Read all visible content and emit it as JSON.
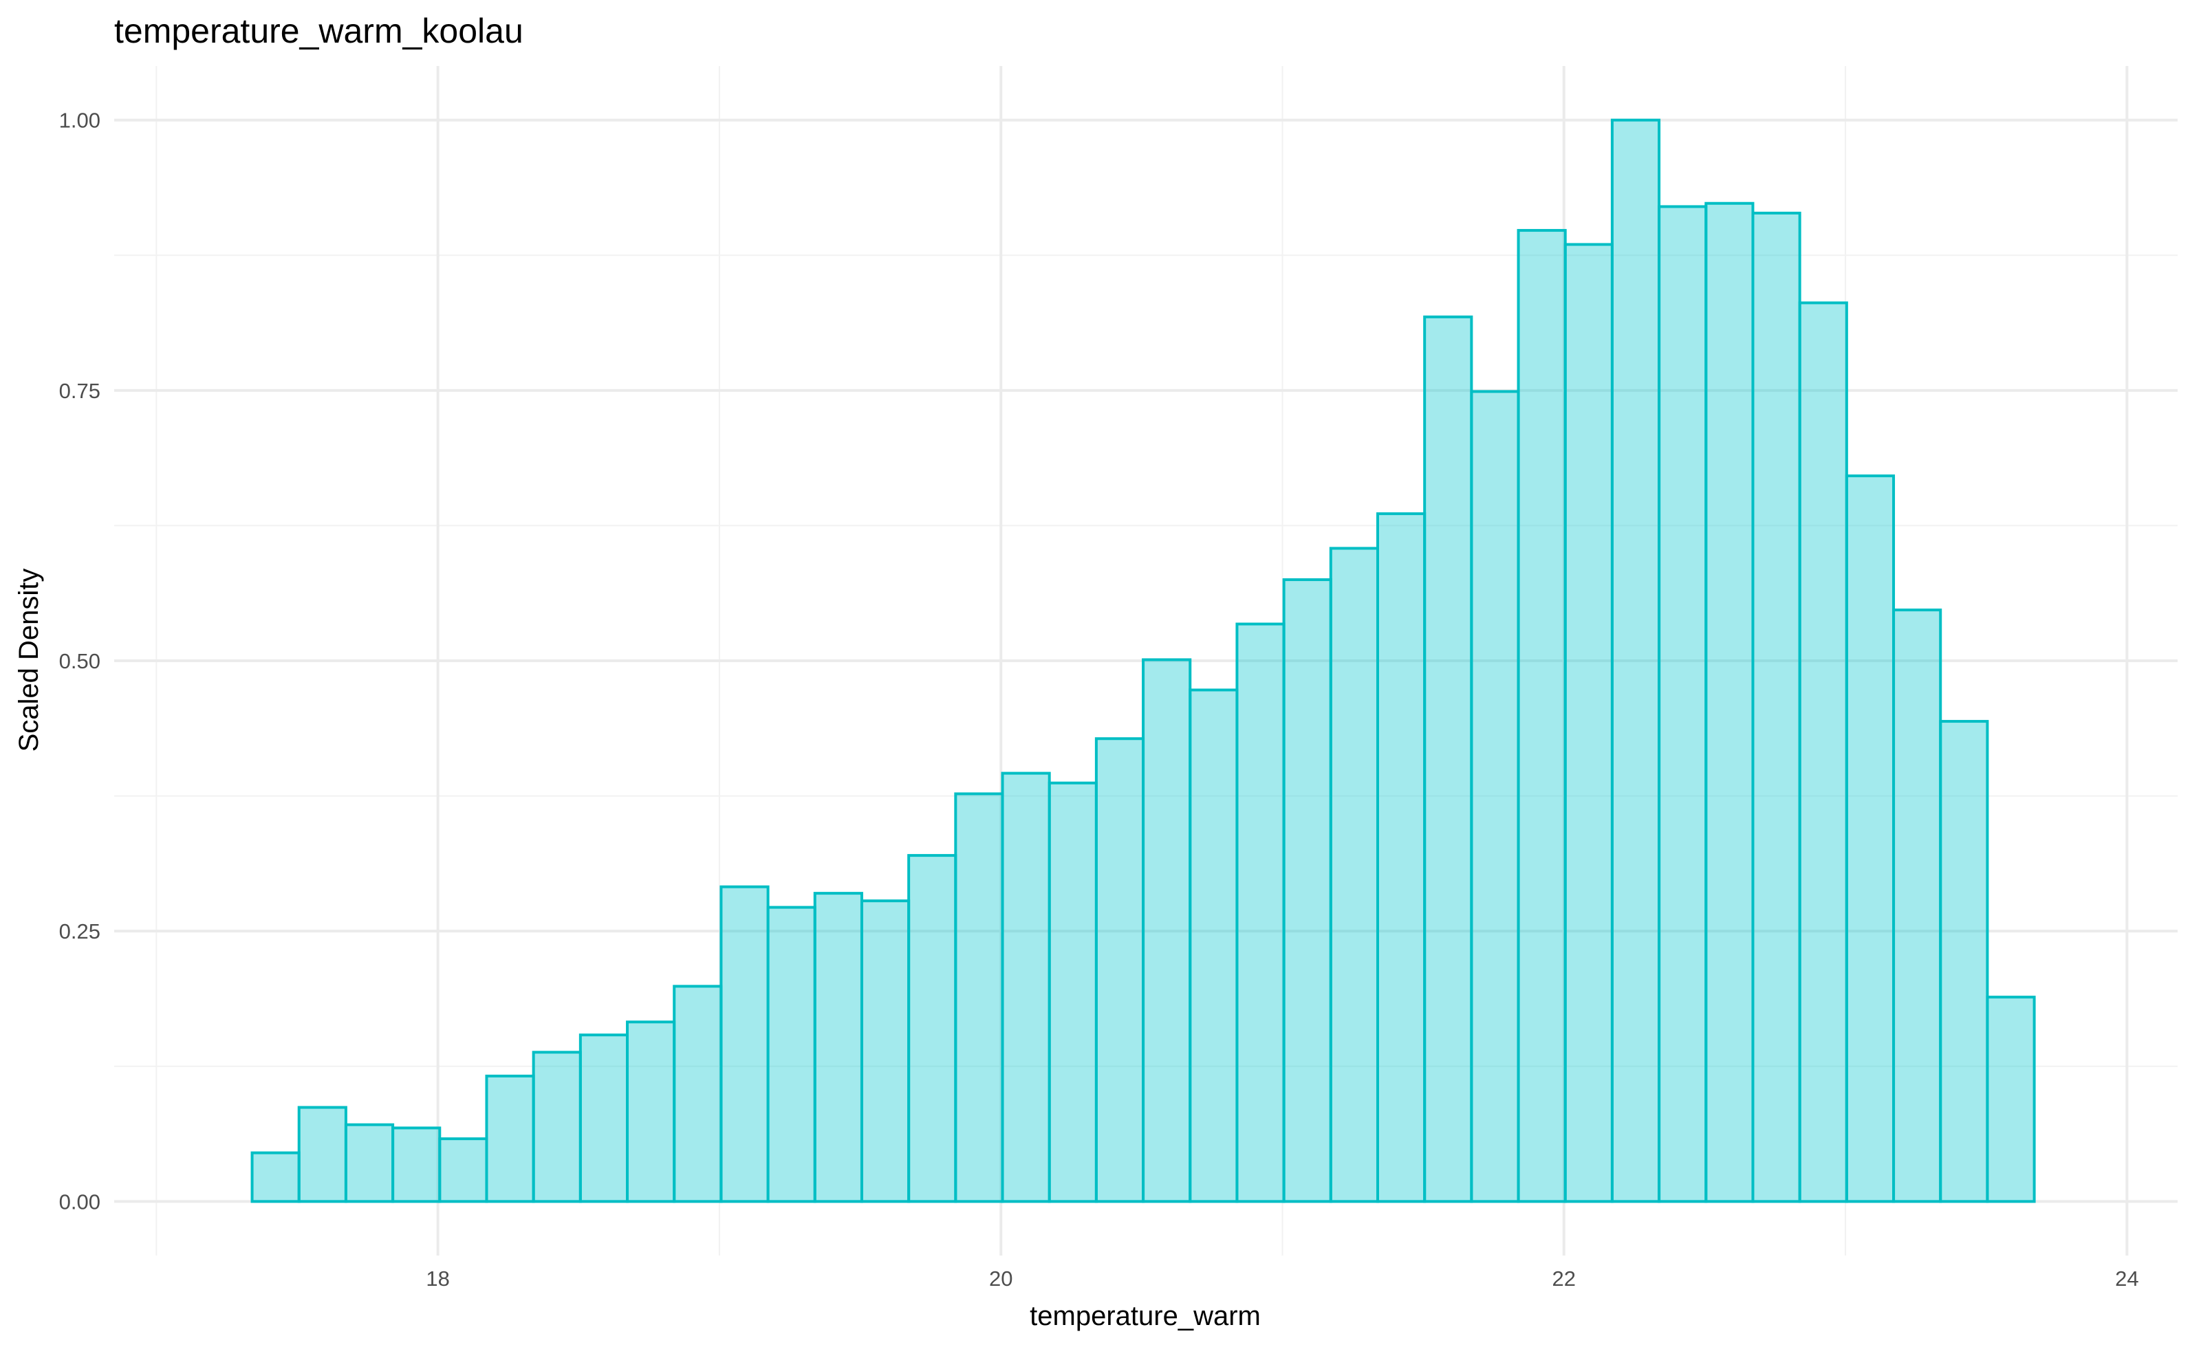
{
  "chart_data": {
    "type": "bar",
    "title": "temperature_warm_koolau",
    "xlabel": "temperature_warm",
    "ylabel": "Scaled Density",
    "xlim": [
      16.85,
      24.18
    ],
    "ylim": [
      -0.05,
      1.05
    ],
    "x_ticks": [
      18,
      20,
      22,
      24
    ],
    "x_tick_labels": [
      "18",
      "20",
      "22",
      "24"
    ],
    "y_ticks": [
      0,
      0.25,
      0.5,
      0.75,
      1.0
    ],
    "y_tick_labels": [
      "0.00",
      "0.25",
      "0.50",
      "0.75",
      "1.00"
    ],
    "bin_start": 17.34,
    "bin_width": 0.1666,
    "values": [
      0.045,
      0.087,
      0.071,
      0.068,
      0.058,
      0.116,
      0.138,
      0.154,
      0.166,
      0.199,
      0.291,
      0.272,
      0.285,
      0.278,
      0.32,
      0.377,
      0.396,
      0.387,
      0.428,
      0.501,
      0.473,
      0.534,
      0.575,
      0.604,
      0.636,
      0.818,
      0.749,
      0.898,
      0.885,
      1.0,
      0.92,
      0.923,
      0.914,
      0.831,
      0.671,
      0.547,
      0.444,
      0.189
    ],
    "grid": true,
    "colors": {
      "fill": "#00c5cd",
      "fill_opacity": 0.36,
      "stroke": "#00bec4"
    }
  }
}
